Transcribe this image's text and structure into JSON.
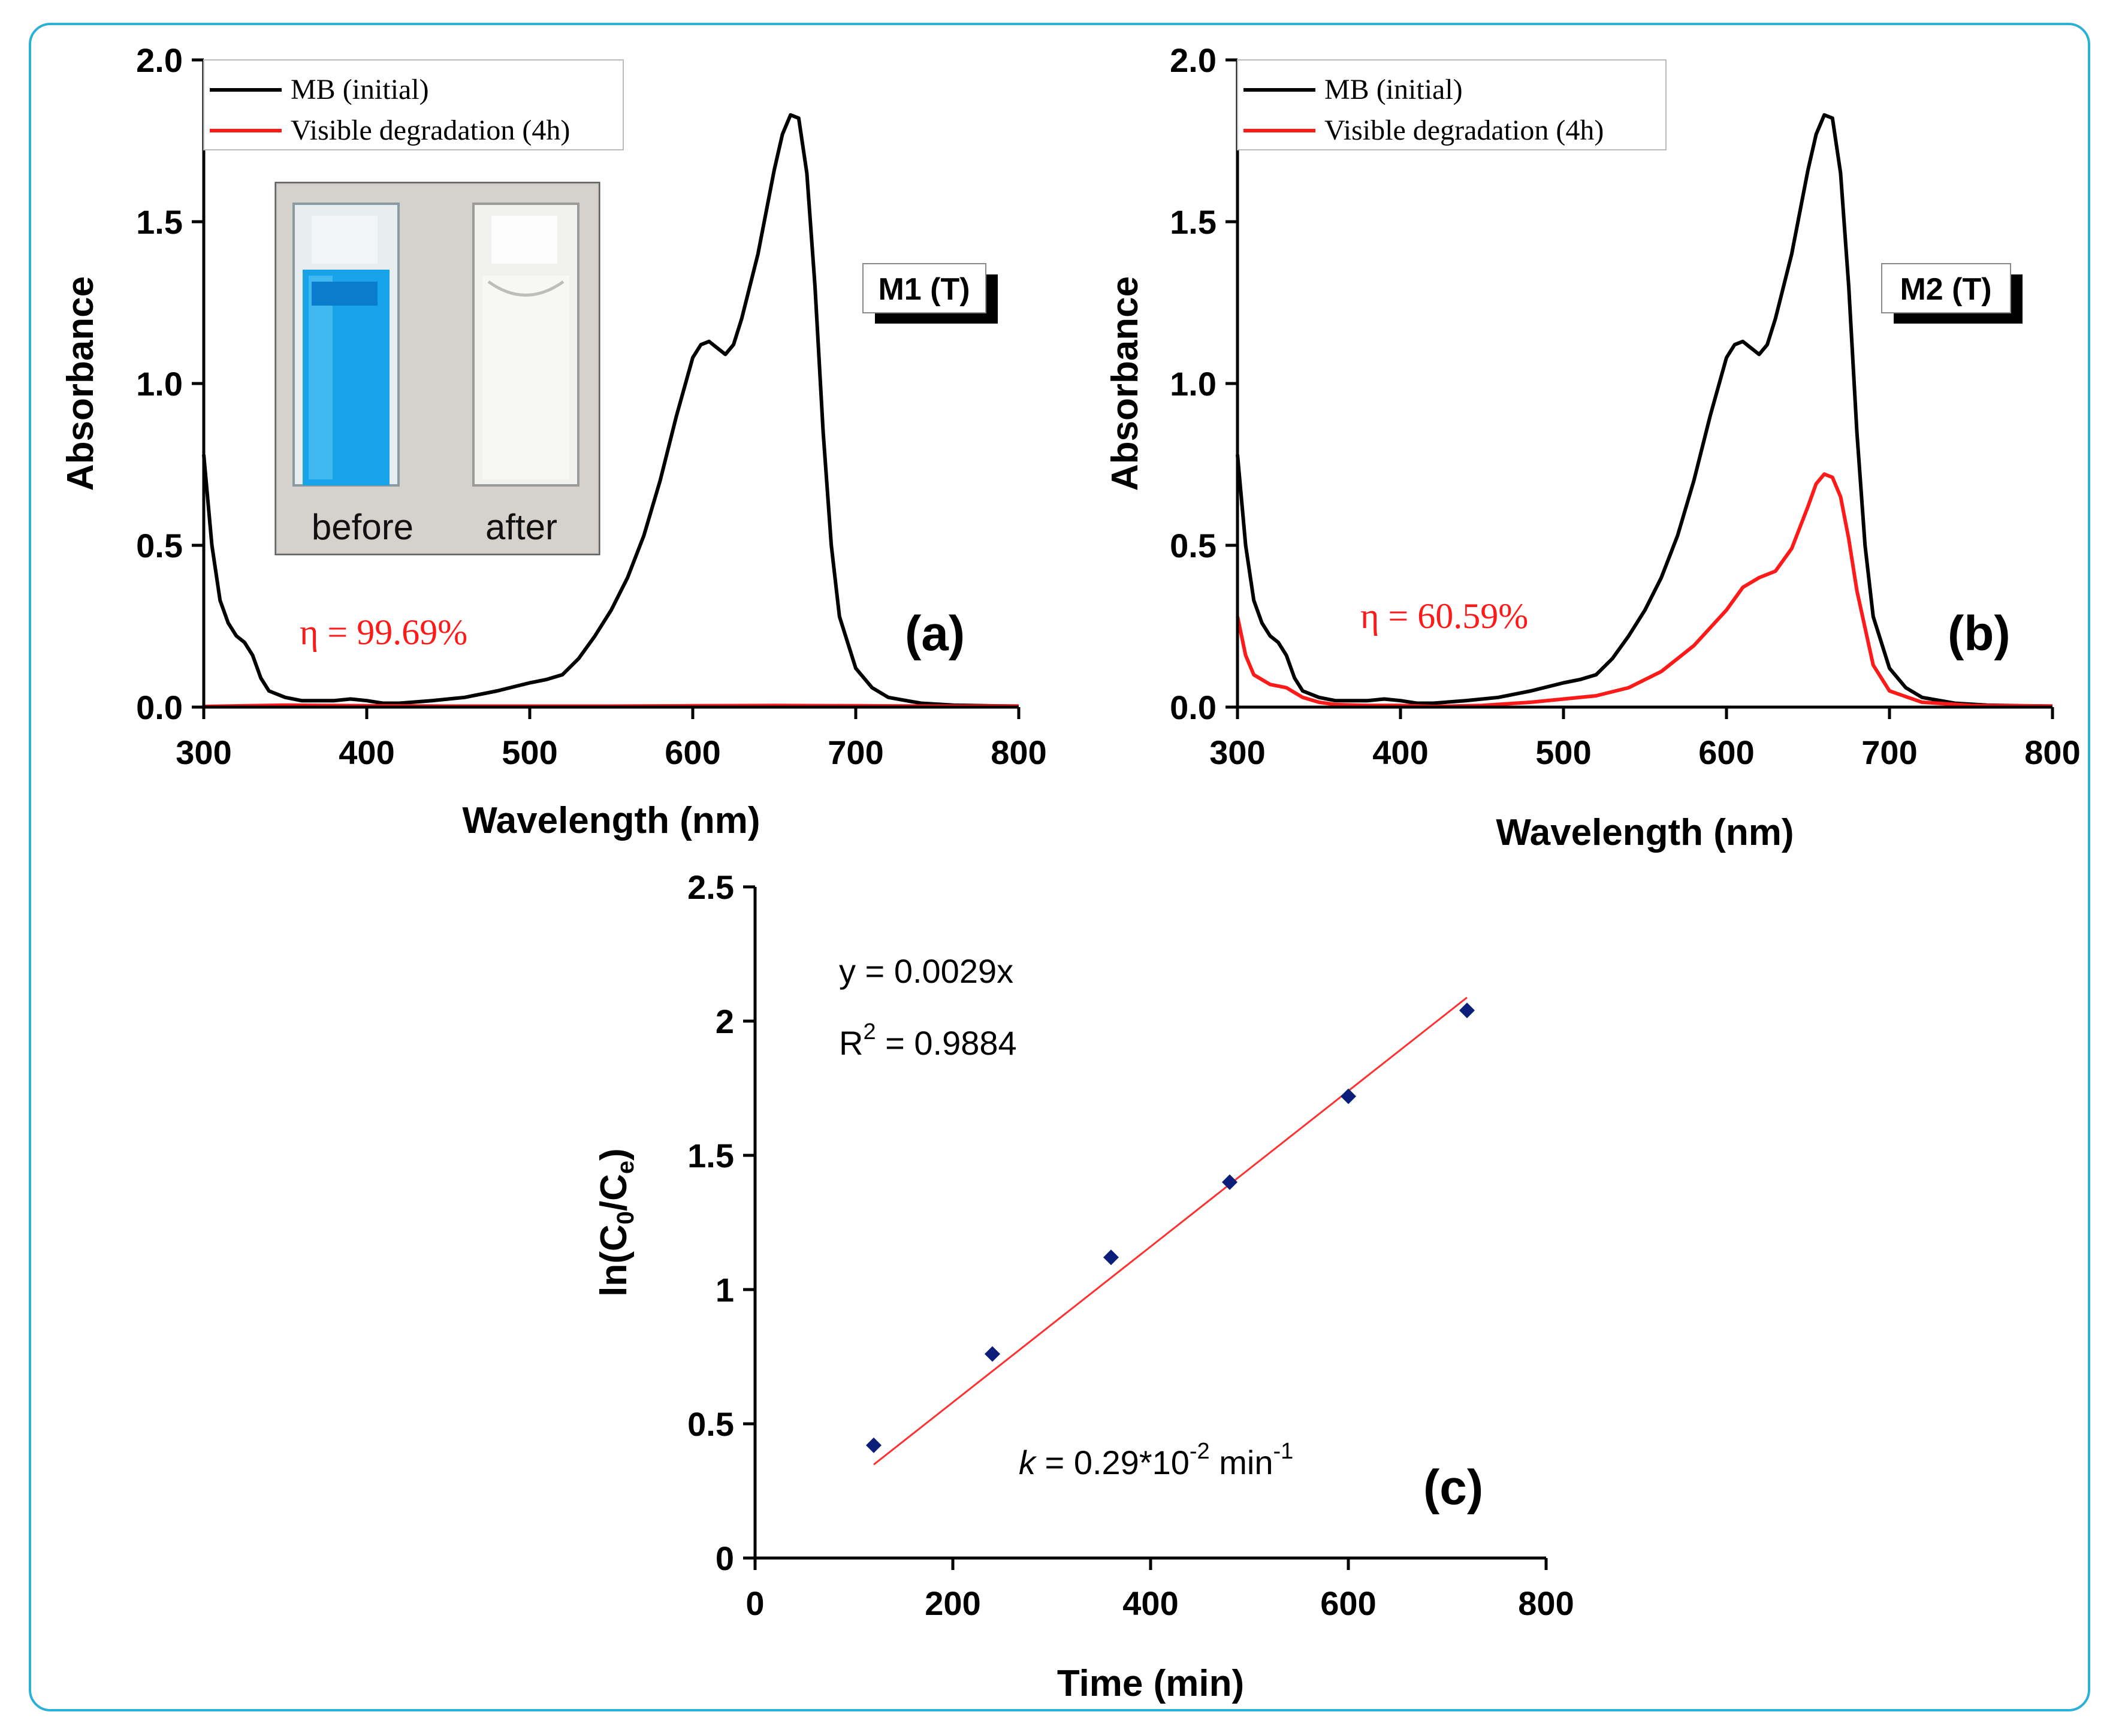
{
  "colors": {
    "frame": "#2bb0d8",
    "initial": "#000000",
    "degraded": "#ff1a1a",
    "points": "#0b1f7a",
    "fit": "#ff3030"
  },
  "chart_data": [
    {
      "id": "a",
      "type": "line",
      "panel_label": "(a)",
      "sample_label": "M1 (T)",
      "efficiency_label": "η = 99.69%",
      "xlabel": "Wavelength (nm)",
      "ylabel": "Absorbance",
      "xlim": [
        300,
        800
      ],
      "ylim": [
        0,
        2.0
      ],
      "xticks": [
        "300",
        "400",
        "500",
        "600",
        "700",
        "800"
      ],
      "yticks": [
        "0.0",
        "0.5",
        "1.0",
        "1.5",
        "2.0"
      ],
      "legend": [
        "MB (initial)",
        "Visible degradation (4h)"
      ],
      "inset_labels": [
        "before",
        "after"
      ],
      "series": [
        {
          "name": "MB (initial)",
          "color": "#000000",
          "x": [
            300,
            305,
            310,
            315,
            320,
            325,
            330,
            335,
            340,
            350,
            360,
            370,
            380,
            390,
            400,
            410,
            420,
            440,
            460,
            480,
            500,
            510,
            520,
            530,
            540,
            550,
            560,
            570,
            580,
            590,
            600,
            605,
            610,
            615,
            620,
            625,
            630,
            640,
            650,
            655,
            660,
            665,
            670,
            675,
            680,
            685,
            690,
            700,
            710,
            720,
            740,
            760,
            780,
            800
          ],
          "y": [
            0.78,
            0.5,
            0.33,
            0.26,
            0.22,
            0.2,
            0.16,
            0.09,
            0.05,
            0.03,
            0.02,
            0.02,
            0.02,
            0.025,
            0.02,
            0.012,
            0.012,
            0.02,
            0.03,
            0.05,
            0.075,
            0.085,
            0.1,
            0.15,
            0.22,
            0.3,
            0.4,
            0.53,
            0.7,
            0.9,
            1.08,
            1.12,
            1.13,
            1.11,
            1.09,
            1.12,
            1.2,
            1.4,
            1.66,
            1.77,
            1.83,
            1.82,
            1.65,
            1.3,
            0.85,
            0.5,
            0.28,
            0.12,
            0.06,
            0.03,
            0.012,
            0.006,
            0.004,
            0.003
          ]
        },
        {
          "name": "Visible degradation (4h)",
          "color": "#ff1a1a",
          "x": [
            300,
            350,
            400,
            450,
            500,
            550,
            600,
            650,
            700,
            750,
            800
          ],
          "y": [
            0.002,
            0.006,
            0.004,
            0.003,
            0.003,
            0.003,
            0.004,
            0.005,
            0.004,
            0.003,
            0.003
          ]
        }
      ]
    },
    {
      "id": "b",
      "type": "line",
      "panel_label": "(b)",
      "sample_label": "M2 (T)",
      "efficiency_label": "η = 60.59%",
      "xlabel": "Wavelength (nm)",
      "ylabel": "Absorbance",
      "xlim": [
        300,
        800
      ],
      "ylim": [
        0,
        2.0
      ],
      "xticks": [
        "300",
        "400",
        "500",
        "600",
        "700",
        "800"
      ],
      "yticks": [
        "0.0",
        "0.5",
        "1.0",
        "1.5",
        "2.0"
      ],
      "legend": [
        "MB (initial)",
        "Visible degradation (4h)"
      ],
      "series": [
        {
          "name": "MB (initial)",
          "color": "#000000",
          "x": [
            300,
            305,
            310,
            315,
            320,
            325,
            330,
            335,
            340,
            350,
            360,
            370,
            380,
            390,
            400,
            410,
            420,
            440,
            460,
            480,
            500,
            510,
            520,
            530,
            540,
            550,
            560,
            570,
            580,
            590,
            600,
            605,
            610,
            615,
            620,
            625,
            630,
            640,
            650,
            655,
            660,
            665,
            670,
            675,
            680,
            685,
            690,
            700,
            710,
            720,
            740,
            760,
            780,
            800
          ],
          "y": [
            0.78,
            0.5,
            0.33,
            0.26,
            0.22,
            0.2,
            0.16,
            0.09,
            0.05,
            0.03,
            0.02,
            0.02,
            0.02,
            0.025,
            0.02,
            0.012,
            0.012,
            0.02,
            0.03,
            0.05,
            0.075,
            0.085,
            0.1,
            0.15,
            0.22,
            0.3,
            0.4,
            0.53,
            0.7,
            0.9,
            1.08,
            1.12,
            1.13,
            1.11,
            1.09,
            1.12,
            1.2,
            1.4,
            1.66,
            1.77,
            1.83,
            1.82,
            1.65,
            1.3,
            0.85,
            0.5,
            0.28,
            0.12,
            0.06,
            0.03,
            0.012,
            0.006,
            0.004,
            0.003
          ]
        },
        {
          "name": "Visible degradation (4h)",
          "color": "#ff1a1a",
          "x": [
            300,
            305,
            310,
            320,
            330,
            340,
            350,
            360,
            380,
            400,
            420,
            450,
            480,
            500,
            520,
            540,
            560,
            580,
            600,
            610,
            620,
            630,
            640,
            650,
            655,
            660,
            665,
            670,
            675,
            680,
            690,
            700,
            720,
            750,
            800
          ],
          "y": [
            0.28,
            0.16,
            0.1,
            0.07,
            0.06,
            0.03,
            0.015,
            0.008,
            0.005,
            0.005,
            0.002,
            0.005,
            0.015,
            0.025,
            0.035,
            0.06,
            0.11,
            0.19,
            0.3,
            0.37,
            0.4,
            0.42,
            0.49,
            0.62,
            0.69,
            0.72,
            0.71,
            0.65,
            0.52,
            0.36,
            0.13,
            0.05,
            0.015,
            0.005,
            0.003
          ]
        }
      ]
    },
    {
      "id": "c",
      "type": "scatter",
      "panel_label": "(c)",
      "xlabel": "Time (min)",
      "ylabel": "ln(C0/Ce)",
      "xlim": [
        0,
        800
      ],
      "ylim": [
        0,
        2.5
      ],
      "xticks": [
        "0",
        "200",
        "400",
        "600",
        "800"
      ],
      "yticks": [
        "0",
        "0.5",
        "1",
        "1.5",
        "2",
        "2.5"
      ],
      "fit_equation": "y = 0.0029x",
      "r_squared_label": "R",
      "r_squared_value": " = 0.9884",
      "rate_constant": {
        "symbol": "k",
        "prefix": " = 0.29*10",
        "exponent": "-2",
        "unit": " min",
        "unit_exponent": "-1"
      },
      "points": {
        "x": [
          120,
          240,
          360,
          480,
          600,
          720
        ],
        "y": [
          0.42,
          0.76,
          1.12,
          1.4,
          1.72,
          2.04
        ]
      },
      "fit_line": {
        "slope": 0.0029,
        "x_range": [
          120,
          720
        ]
      }
    }
  ]
}
